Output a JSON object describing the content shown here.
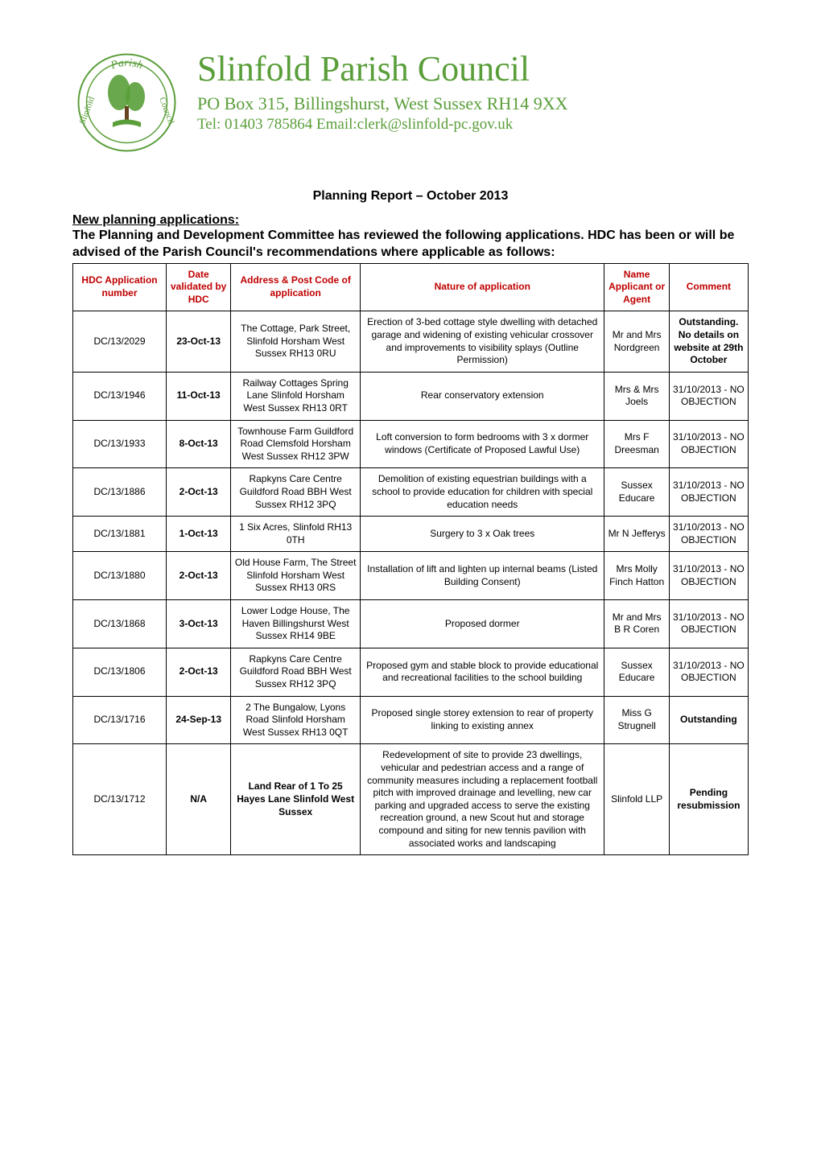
{
  "header": {
    "org_name": "Slinfold Parish Council",
    "address": "PO Box 315, Billingshurst, West Sussex RH14 9XX",
    "contact": "Tel: 01403 785864  Email:clerk@slinfold-pc.gov.uk",
    "logo_text_top": "Parish",
    "logo_text_left": "Slinfold",
    "logo_text_right": "Council"
  },
  "report_title": "Planning Report – October 2013",
  "section_heading": "New planning applications:",
  "intro_text": "The Planning and Development Committee has reviewed the following applications.  HDC has been or will be advised of the Parish Council's recommendations where applicable as follows:",
  "table": {
    "columns": [
      "HDC Application number",
      "Date validated by HDC",
      "Address & Post Code of application",
      "Nature of application",
      "Name Applicant or Agent",
      "Comment"
    ],
    "rows": [
      {
        "app_number": "DC/13/2029",
        "date": "23-Oct-13",
        "address": "The Cottage, Park Street, Slinfold Horsham West Sussex RH13 0RU",
        "nature": "Erection of 3-bed cottage style dwelling with detached garage and widening of existing vehicular crossover and improvements to visibility splays (Outline Permission)",
        "applicant": "Mr and Mrs Nordgreen",
        "comment": "Outstanding. No details on website at 29th October",
        "comment_bold": true,
        "addr_bold": false
      },
      {
        "app_number": "DC/13/1946",
        "date": "11-Oct-13",
        "address": "Railway Cottages Spring Lane Slinfold Horsham West Sussex RH13 0RT",
        "nature": "Rear conservatory extension",
        "applicant": "Mrs & Mrs Joels",
        "comment": "31/10/2013 - NO OBJECTION",
        "comment_bold": false,
        "addr_bold": false
      },
      {
        "app_number": "DC/13/1933",
        "date": "8-Oct-13",
        "address": "Townhouse Farm Guildford Road Clemsfold Horsham West Sussex RH12 3PW",
        "nature": "Loft conversion to form bedrooms with 3 x dormer windows (Certificate of Proposed Lawful Use)",
        "applicant": "Mrs F Dreesman",
        "comment": "31/10/2013 - NO OBJECTION",
        "comment_bold": false,
        "addr_bold": false
      },
      {
        "app_number": "DC/13/1886",
        "date": "2-Oct-13",
        "address": "Rapkyns Care Centre Guildford Road BBH West Sussex RH12 3PQ",
        "nature": "Demolition of existing equestrian buildings with a school to provide education for children with special education needs",
        "applicant": "Sussex Educare",
        "comment": "31/10/2013 - NO OBJECTION",
        "comment_bold": false,
        "addr_bold": false
      },
      {
        "app_number": "DC/13/1881",
        "date": "1-Oct-13",
        "address": "1 Six Acres, Slinfold RH13 0TH",
        "nature": "Surgery to 3 x Oak trees",
        "applicant": "Mr N Jefferys",
        "comment": "31/10/2013 - NO OBJECTION",
        "comment_bold": false,
        "addr_bold": false
      },
      {
        "app_number": "DC/13/1880",
        "date": "2-Oct-13",
        "address": "Old House Farm, The Street Slinfold Horsham West Sussex RH13 0RS",
        "nature": "Installation of lift and lighten up internal beams (Listed Building Consent)",
        "applicant": "Mrs Molly Finch Hatton",
        "comment": "31/10/2013 - NO OBJECTION",
        "comment_bold": false,
        "addr_bold": false
      },
      {
        "app_number": "DC/13/1868",
        "date": "3-Oct-13",
        "address": "Lower Lodge House, The Haven Billingshurst West Sussex RH14 9BE",
        "nature": "Proposed dormer",
        "applicant": "Mr and Mrs B R Coren",
        "comment": "31/10/2013 - NO OBJECTION",
        "comment_bold": false,
        "addr_bold": false
      },
      {
        "app_number": "DC/13/1806",
        "date": "2-Oct-13",
        "address": "Rapkyns Care Centre Guildford Road BBH West Sussex RH12 3PQ",
        "nature": "Proposed gym and stable block to provide educational and recreational facilities to the school building",
        "applicant": "Sussex Educare",
        "comment": "31/10/2013 - NO OBJECTION",
        "comment_bold": false,
        "addr_bold": false
      },
      {
        "app_number": "DC/13/1716",
        "date": "24-Sep-13",
        "address": "2 The Bungalow, Lyons Road Slinfold Horsham West Sussex RH13 0QT",
        "nature": "Proposed single storey extension to rear of property linking to existing annex",
        "applicant": "Miss G Strugnell",
        "comment": "Outstanding",
        "comment_bold": true,
        "addr_bold": false
      },
      {
        "app_number": "DC/13/1712",
        "date": "N/A",
        "address": "Land Rear of 1 To 25 Hayes Lane Slinfold West Sussex",
        "nature": "Redevelopment of site to provide 23 dwellings, vehicular and pedestrian access and a range of community measures including a replacement football pitch with improved drainage and levelling, new car parking and upgraded access to serve the existing recreation ground, a new Scout hut and storage compound and siting for new tennis pavilion with associated works and landscaping",
        "applicant": "Slinfold LLP",
        "comment": "Pending resubmission",
        "comment_bold": true,
        "addr_bold": true
      }
    ]
  },
  "colors": {
    "header_green": "#5a9e3a",
    "table_header_red": "#c00000",
    "border": "#000000",
    "background": "#ffffff"
  }
}
